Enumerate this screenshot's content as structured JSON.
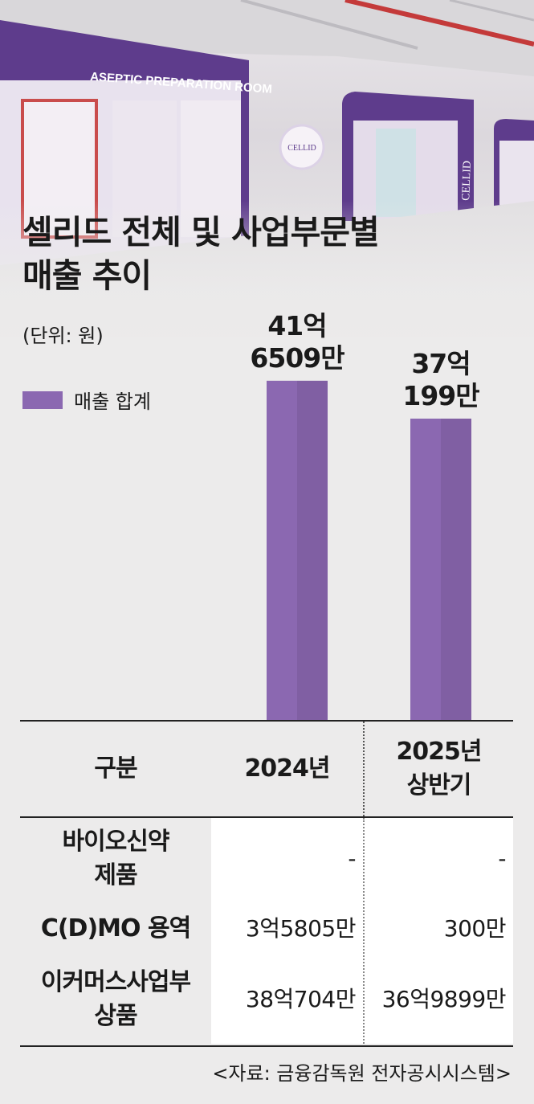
{
  "photo": {
    "sign_main": "ASEPTIC PREPARATION ROOM",
    "sign_logo": "CELLID",
    "sign_side": "CELLID"
  },
  "title": {
    "line1": "셀리드 전체 및 사업부문별",
    "line2": "매출 추이"
  },
  "unit": "(단위: 원)",
  "chart_data": {
    "type": "bar",
    "categories": [
      "2024년",
      "2025년 상반기"
    ],
    "series": [
      {
        "name": "매출 합계",
        "values": [
          4165090000,
          3701990000
        ],
        "color": "#8b68b1"
      }
    ],
    "data_labels": [
      {
        "line1": "41억",
        "line2": "6509만"
      },
      {
        "line1": "37억",
        "line2": "199만"
      }
    ],
    "unit": "(단위: 원)",
    "legend": "top-left",
    "grid": false,
    "ylim": [
      0,
      4910000000
    ]
  },
  "table": {
    "header": {
      "col0": "구분",
      "col1": "2024년",
      "col2_line1": "2025년",
      "col2_line2": "상반기"
    },
    "rows": [
      {
        "label_line1": "바이오신약",
        "label_line2": "제품",
        "v2024": "-",
        "v2025": "-"
      },
      {
        "label_line1": "C(D)MO 용역",
        "label_line2": "",
        "v2024": "3억5805만",
        "v2025": "300만"
      },
      {
        "label_line1": "이커머스사업부",
        "label_line2": "상품",
        "v2024": "38억704만",
        "v2025": "36억9899만"
      }
    ]
  },
  "source": "<자료: 금융감독원 전자공시시스템>"
}
